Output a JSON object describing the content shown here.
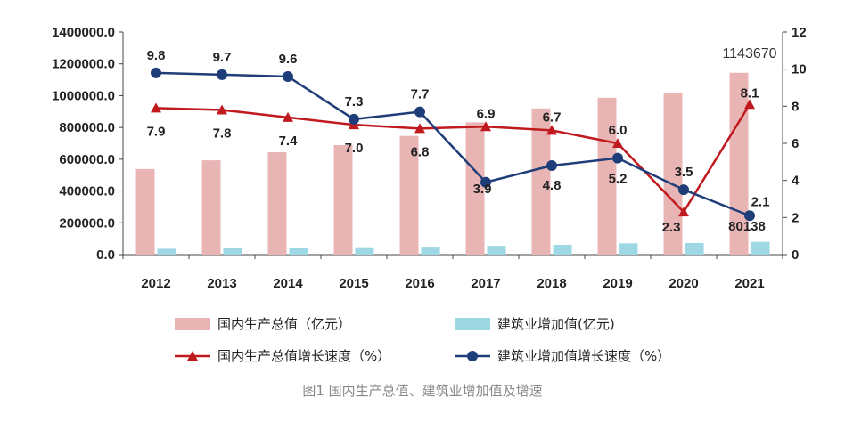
{
  "chart_data": {
    "type": "bar+line",
    "categories": [
      "2012",
      "2013",
      "2014",
      "2015",
      "2016",
      "2017",
      "2018",
      "2019",
      "2020",
      "2021"
    ],
    "y_left": {
      "ylim": [
        0,
        1400000
      ],
      "ticks": [
        "0.0",
        "200000.0",
        "400000.0",
        "600000.0",
        "800000.0",
        "1000000.0",
        "1200000.0",
        "1400000.0"
      ]
    },
    "y_right": {
      "ylim": [
        0,
        12
      ],
      "ticks": [
        "0",
        "2",
        "4",
        "6",
        "8",
        "10",
        "12"
      ]
    },
    "series": [
      {
        "name": "国内生产总值（亿元）",
        "type": "bar",
        "axis": "left",
        "color": "#E8B4B4",
        "values": [
          538580,
          592963,
          643563,
          688858,
          746395,
          832036,
          919281,
          986515,
          1015986,
          1143670
        ]
      },
      {
        "name": "建筑业增加值(亿元)",
        "type": "bar",
        "axis": "left",
        "color": "#9ED8E4",
        "values": [
          36896,
          40897,
          44880,
          46627,
          49703,
          55689,
          61808,
          70904,
          72996,
          80138
        ]
      },
      {
        "name": "国内生产总值增长速度（%）",
        "type": "line",
        "axis": "right",
        "color": "#C0191E",
        "marker": "triangle",
        "values": [
          7.9,
          7.8,
          7.4,
          7.0,
          6.8,
          6.9,
          6.7,
          6.0,
          2.3,
          8.1
        ],
        "labels": [
          "7.9",
          "7.8",
          "7.4",
          "7.0",
          "6.8",
          "6.9",
          "6.7",
          "6.0",
          "2.3",
          "8.1"
        ]
      },
      {
        "name": "建筑业增加值增长速度（%）",
        "type": "line",
        "axis": "right",
        "color": "#1F3D78",
        "marker": "circle",
        "values": [
          9.8,
          9.7,
          9.6,
          7.3,
          7.7,
          3.9,
          4.8,
          5.2,
          3.5,
          2.1
        ],
        "labels": [
          "9.8",
          "9.7",
          "9.6",
          "7.3",
          "7.7",
          "3.9",
          "4.8",
          "5.2",
          "3.5",
          "2.1"
        ]
      }
    ],
    "annotations": {
      "gdp_2021": "1143670",
      "construction_2021": "80138"
    },
    "grid": false,
    "legend_position": "bottom",
    "caption": "图1 国内生产总值、建筑业增加值及增速"
  }
}
